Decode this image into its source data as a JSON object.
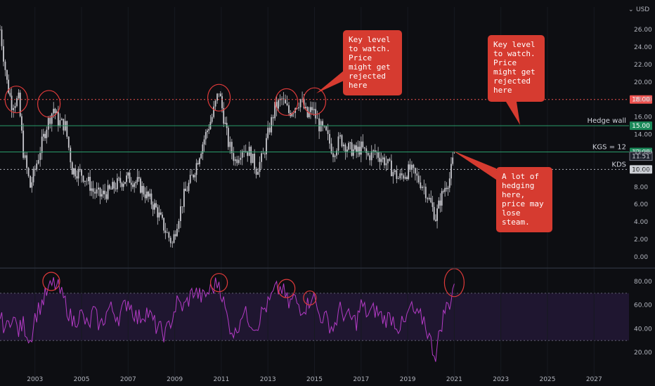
{
  "currency": "USD",
  "chart_data": [
    {
      "type": "candlestick",
      "panel": "price",
      "ylim": [
        0,
        27
      ],
      "yticks": [
        "0.00",
        "2.00",
        "4.00",
        "6.00",
        "8.00",
        "10.00",
        "12.00",
        "14.00",
        "16.00",
        "18.00",
        "20.00",
        "22.00",
        "24.00",
        "26.00"
      ],
      "xlim": [
        2001.5,
        2028.5
      ],
      "xticks": [
        "2003",
        "2005",
        "2007",
        "2009",
        "2011",
        "2013",
        "2015",
        "2017",
        "2019",
        "2021",
        "2023",
        "2025",
        "2027"
      ],
      "series": [
        {
          "x": [
            2001.5,
            2001.8,
            2002.0,
            2002.3,
            2002.5,
            2002.8,
            2003.0,
            2003.3,
            2003.5,
            2003.8,
            2004.0,
            2004.3,
            2004.6,
            2005.0,
            2005.3,
            2005.5,
            2005.8,
            2006.2,
            2006.6,
            2007.0,
            2007.4,
            2007.8,
            2008.2,
            2008.6,
            2008.9,
            2009.1,
            2009.4,
            2009.8,
            2010.2,
            2010.6,
            2010.9,
            2011.1,
            2011.3,
            2011.6,
            2011.9,
            2012.2,
            2012.5,
            2012.8,
            2013.0,
            2013.3,
            2013.6,
            2013.9,
            2014.1,
            2014.4,
            2014.7,
            2014.9,
            2015.2,
            2015.5,
            2015.8,
            2016.1,
            2016.4,
            2016.8,
            2017.0,
            2017.3,
            2017.6,
            2018.0,
            2018.3,
            2018.6,
            2018.9,
            2019.1,
            2019.4,
            2019.7,
            2020.0,
            2020.2,
            2020.4,
            2020.6,
            2020.8,
            2021.0
          ],
          "close": [
            26.0,
            20.0,
            17.5,
            18.0,
            12.0,
            8.0,
            10.0,
            13.0,
            15.0,
            17.0,
            15.5,
            15.0,
            10.0,
            9.5,
            8.5,
            7.5,
            7.0,
            7.5,
            8.5,
            9.0,
            8.5,
            7.0,
            5.5,
            3.0,
            1.5,
            4.0,
            7.0,
            9.5,
            13.0,
            16.0,
            19.0,
            16.0,
            13.0,
            11.0,
            12.5,
            12.0,
            10.0,
            11.5,
            14.0,
            17.0,
            18.0,
            16.5,
            17.0,
            18.0,
            16.0,
            17.0,
            15.0,
            14.0,
            12.0,
            13.5,
            12.5,
            12.0,
            12.5,
            11.5,
            12.0,
            11.0,
            10.0,
            9.0,
            9.5,
            10.0,
            9.0,
            8.0,
            6.0,
            4.5,
            6.5,
            8.0,
            9.0,
            11.8
          ]
        }
      ],
      "levels": [
        {
          "value": 18.0,
          "label": "",
          "tag": "18.00",
          "color": "#ef5350",
          "style": "dotted"
        },
        {
          "value": 15.0,
          "label": "Hedge wall",
          "tag": "15.00",
          "color": "#2a9d6a",
          "style": "solid"
        },
        {
          "value": 12.0,
          "label": "KGS = 12",
          "tag": "12.00",
          "color": "#2a9d6a",
          "style": "solid"
        },
        {
          "value": 10.0,
          "label": "KDS",
          "tag": "10.00",
          "color": "#b2b5be",
          "style": "dotted"
        }
      ],
      "last_price": "11.51",
      "circles": [
        {
          "x": 2002.2,
          "y": 18.0
        },
        {
          "x": 2003.6,
          "y": 17.5
        },
        {
          "x": 2010.9,
          "y": 18.2
        },
        {
          "x": 2013.8,
          "y": 17.7
        },
        {
          "x": 2015.0,
          "y": 17.8
        }
      ]
    },
    {
      "type": "line",
      "panel": "rsi",
      "ylim": [
        10,
        90
      ],
      "yticks": [
        "20.00",
        "40.00",
        "60.00",
        "80.00"
      ],
      "band": [
        30,
        70
      ],
      "series": [
        {
          "x": [
            2001.5,
            2001.8,
            2002.0,
            2002.3,
            2002.5,
            2002.8,
            2003.0,
            2003.3,
            2003.5,
            2003.8,
            2004.0,
            2004.3,
            2004.6,
            2005.0,
            2005.3,
            2005.5,
            2005.8,
            2006.2,
            2006.6,
            2007.0,
            2007.4,
            2007.8,
            2008.2,
            2008.6,
            2008.9,
            2009.1,
            2009.4,
            2009.8,
            2010.2,
            2010.6,
            2010.9,
            2011.1,
            2011.3,
            2011.6,
            2011.9,
            2012.2,
            2012.5,
            2012.8,
            2013.0,
            2013.3,
            2013.6,
            2013.9,
            2014.1,
            2014.4,
            2014.7,
            2014.9,
            2015.2,
            2015.5,
            2015.8,
            2016.1,
            2016.4,
            2016.8,
            2017.0,
            2017.3,
            2017.6,
            2018.0,
            2018.3,
            2018.6,
            2018.9,
            2019.1,
            2019.4,
            2019.7,
            2020.0,
            2020.2,
            2020.4,
            2020.6,
            2020.8,
            2021.0
          ],
          "values": [
            48,
            40,
            52,
            38,
            44,
            30,
            50,
            62,
            70,
            78,
            74,
            62,
            46,
            52,
            40,
            55,
            42,
            58,
            50,
            64,
            48,
            55,
            42,
            35,
            50,
            62,
            58,
            72,
            66,
            74,
            80,
            62,
            45,
            35,
            55,
            48,
            42,
            56,
            60,
            72,
            74,
            60,
            66,
            58,
            60,
            70,
            52,
            48,
            40,
            56,
            50,
            46,
            60,
            52,
            56,
            48,
            50,
            42,
            44,
            58,
            50,
            48,
            28,
            16,
            40,
            56,
            62,
            78
          ]
        }
      ],
      "circles": [
        {
          "x": 2003.7,
          "y": 80
        },
        {
          "x": 2010.9,
          "y": 79
        },
        {
          "x": 2013.8,
          "y": 74
        },
        {
          "x": 2014.8,
          "y": 66
        },
        {
          "x": 2021.0,
          "y": 79
        }
      ]
    }
  ],
  "annotations": [
    {
      "lines": [
        "Key level",
        "to watch.",
        "Price",
        "might get",
        "rejected",
        "here"
      ]
    },
    {
      "lines": [
        "Key level",
        "to watch.",
        "Price",
        "might get",
        "rejected",
        "here"
      ]
    },
    {
      "lines": [
        "A lot of",
        "hedging",
        "here,",
        "price may",
        "lose",
        "steam."
      ]
    }
  ],
  "colors": {
    "background": "#0d0e12",
    "rsi_line": "#b43bc6",
    "rsi_band": "#1f1630",
    "candles": "#c9c9cf",
    "note": "#d63b30",
    "tag_red": "#ef5350",
    "tag_green": "#1b8a5a",
    "tag_gray": "#cfd2d8"
  }
}
